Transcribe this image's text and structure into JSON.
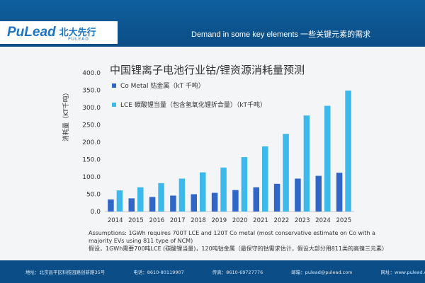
{
  "header": {
    "logo_text": "PuLead",
    "logo_cn": "北大先行",
    "logo_en": "PULEAD",
    "title": "Demand in some key elements 一些关键元素的需求"
  },
  "colors": {
    "header_bg": "#0b4d86",
    "co_metal": "#2f66c8",
    "lce": "#3db8ea"
  },
  "chart_data": {
    "type": "bar",
    "title": "中国锂离子电池行业钴/锂资源消耗量预测",
    "ylabel": "消耗量（KT千吨）",
    "xlabel": "",
    "ylim": [
      0,
      400
    ],
    "yticks": [
      "0.0",
      "50.0",
      "100.0",
      "150.0",
      "200.0",
      "250.0",
      "300.0",
      "350.0",
      "400.0"
    ],
    "categories": [
      "2014",
      "2015",
      "2016",
      "2017",
      "2018",
      "2019",
      "2020",
      "2021",
      "2022",
      "2023",
      "2024",
      "2025"
    ],
    "series": [
      {
        "name": "Co Metal 钴金属（kT 千吨）",
        "values": [
          35,
          38,
          42,
          46,
          50,
          54,
          62,
          70,
          80,
          95,
          103,
          112
        ]
      },
      {
        "name": "LCE 碳酸锂当量（包含氢氧化锂折合量）（kT千吨）",
        "values": [
          61,
          70,
          82,
          95,
          113,
          127,
          157,
          188,
          224,
          277,
          305,
          349
        ]
      }
    ],
    "legend_position": "top-left"
  },
  "notes": {
    "line1": "Assumptions: 1GWh requires 700T LCE and 120T Co metal (most conservative estimate on Co with a majority EVs using 811 type of NCM)",
    "line2": "假设，1GWh需要700吨LCE (碳酸锂当量)，120吨钴金属（最保守的钴需求估计，假设大部分用811类的高镍三元素）"
  },
  "footer": {
    "address": "地址：北京昌平区科技园路创新路35号",
    "phone": "电话：8610-80119907",
    "fax": "传真：8610-69727776",
    "email": "邮箱：pulead@pulead.com",
    "website": "网址：www.pulead.com.cn"
  }
}
